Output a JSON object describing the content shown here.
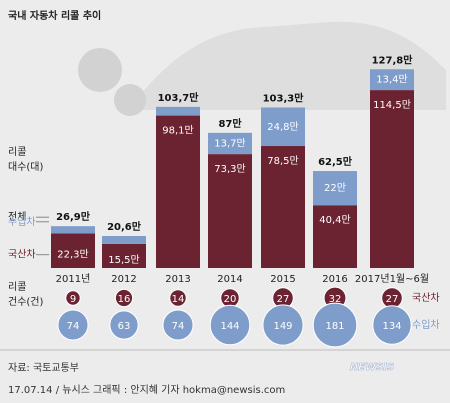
{
  "chart_data": [
    {
      "type": "bar",
      "stacked": true,
      "title": "국내 자동차 리콜 추이",
      "y_label": [
        "리콜",
        "대수(대)"
      ],
      "categories": [
        "2011년",
        "2012",
        "2013",
        "2014",
        "2015",
        "2016",
        "2017년1월~6월"
      ],
      "ylim": [
        0,
        130
      ],
      "series": [
        {
          "name": "국산차",
          "color": "#6b2331",
          "values": [
            22.3,
            15.5,
            98.1,
            73.3,
            78.5,
            40.4,
            114.5
          ],
          "value_labels": [
            "22,3만",
            "15,5만",
            "98,1만",
            "73,3만",
            "78,5만",
            "40,4만",
            "114,5만"
          ]
        },
        {
          "name": "수입차",
          "color": "#7f9dcb",
          "values": [
            4.6,
            5.1,
            5.6,
            13.7,
            24.8,
            22,
            13.4
          ],
          "value_labels": [
            null,
            null,
            null,
            "13,7만",
            "24,8만",
            "22만",
            "13,4만"
          ]
        }
      ],
      "totals": {
        "name": "전체",
        "values": [
          26.9,
          20.6,
          103.7,
          87,
          103.3,
          62.5,
          127.8
        ],
        "value_labels": [
          "26,9만",
          "20,6만",
          "103,7만",
          "87만",
          "103,3만",
          "62,5만",
          "127,8만"
        ]
      }
    },
    {
      "type": "bubble",
      "y_label": [
        "리콜",
        "건수(건)"
      ],
      "series": [
        {
          "name": "국산차",
          "color": "#6b2331",
          "values": [
            9,
            16,
            14,
            20,
            27,
            32,
            27
          ]
        },
        {
          "name": "수입차",
          "color": "#7f9dcb",
          "values": [
            74,
            63,
            74,
            144,
            149,
            181,
            134
          ]
        }
      ]
    }
  ],
  "source": "자료: 국토교통부",
  "credit": "17.07.14 / 뉴시스 그래픽 : 안지혜 기자 hokma@newsis.com",
  "watermark": "NEWSIS"
}
